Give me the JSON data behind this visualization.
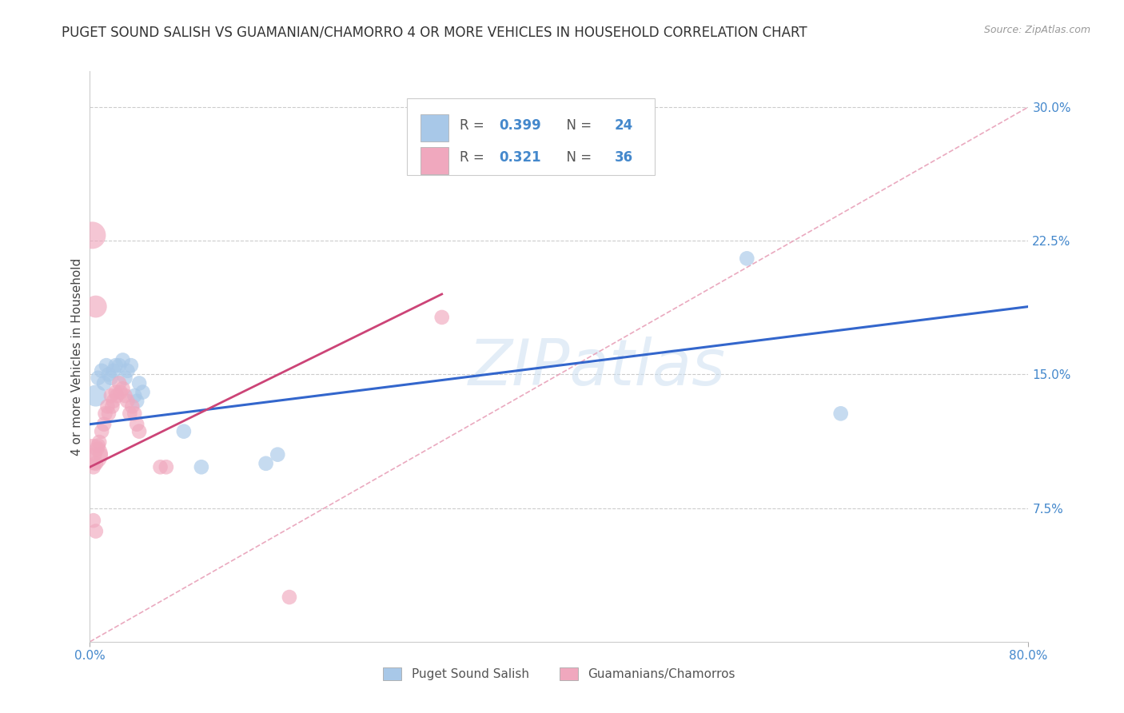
{
  "title": "PUGET SOUND SALISH VS GUAMANIAN/CHAMORRO 4 OR MORE VEHICLES IN HOUSEHOLD CORRELATION CHART",
  "source": "Source: ZipAtlas.com",
  "ylabel": "4 or more Vehicles in Household",
  "xlim": [
    0.0,
    0.8
  ],
  "ylim": [
    0.0,
    0.32
  ],
  "xticks": [
    0.0,
    0.8
  ],
  "xtick_labels": [
    "0.0%",
    "80.0%"
  ],
  "ytick_labels": [
    "7.5%",
    "15.0%",
    "22.5%",
    "30.0%"
  ],
  "yticks": [
    0.075,
    0.15,
    0.225,
    0.3
  ],
  "background_color": "#ffffff",
  "watermark": "ZIPatlas",
  "legend_labels": [
    "Puget Sound Salish",
    "Guamanians/Chamorros"
  ],
  "R_blue": 0.399,
  "N_blue": 24,
  "R_pink": 0.321,
  "N_pink": 36,
  "blue_color": "#a8c8e8",
  "pink_color": "#f0a8be",
  "blue_line_color": "#3366cc",
  "pink_line_color": "#cc4477",
  "diag_line_color": "#e8a0b8",
  "title_fontsize": 12,
  "axis_label_fontsize": 11,
  "tick_fontsize": 11,
  "legend_fontsize": 11,
  "blue_scatter": [
    [
      0.005,
      0.138
    ],
    [
      0.007,
      0.148
    ],
    [
      0.01,
      0.152
    ],
    [
      0.012,
      0.145
    ],
    [
      0.014,
      0.155
    ],
    [
      0.016,
      0.15
    ],
    [
      0.018,
      0.148
    ],
    [
      0.02,
      0.152
    ],
    [
      0.022,
      0.155
    ],
    [
      0.025,
      0.155
    ],
    [
      0.028,
      0.158
    ],
    [
      0.03,
      0.148
    ],
    [
      0.032,
      0.152
    ],
    [
      0.035,
      0.155
    ],
    [
      0.038,
      0.138
    ],
    [
      0.04,
      0.135
    ],
    [
      0.042,
      0.145
    ],
    [
      0.045,
      0.14
    ],
    [
      0.08,
      0.118
    ],
    [
      0.095,
      0.098
    ],
    [
      0.15,
      0.1
    ],
    [
      0.16,
      0.105
    ],
    [
      0.56,
      0.215
    ],
    [
      0.64,
      0.128
    ]
  ],
  "pink_scatter": [
    [
      0.002,
      0.105
    ],
    [
      0.003,
      0.098
    ],
    [
      0.004,
      0.105
    ],
    [
      0.005,
      0.1
    ],
    [
      0.006,
      0.108
    ],
    [
      0.007,
      0.11
    ],
    [
      0.008,
      0.112
    ],
    [
      0.009,
      0.105
    ],
    [
      0.01,
      0.118
    ],
    [
      0.012,
      0.122
    ],
    [
      0.013,
      0.128
    ],
    [
      0.015,
      0.132
    ],
    [
      0.016,
      0.128
    ],
    [
      0.018,
      0.138
    ],
    [
      0.019,
      0.132
    ],
    [
      0.02,
      0.135
    ],
    [
      0.022,
      0.14
    ],
    [
      0.023,
      0.138
    ],
    [
      0.025,
      0.145
    ],
    [
      0.026,
      0.14
    ],
    [
      0.028,
      0.142
    ],
    [
      0.03,
      0.138
    ],
    [
      0.032,
      0.135
    ],
    [
      0.034,
      0.128
    ],
    [
      0.036,
      0.132
    ],
    [
      0.038,
      0.128
    ],
    [
      0.04,
      0.122
    ],
    [
      0.042,
      0.118
    ],
    [
      0.06,
      0.098
    ],
    [
      0.065,
      0.098
    ],
    [
      0.003,
      0.068
    ],
    [
      0.005,
      0.062
    ],
    [
      0.002,
      0.228
    ],
    [
      0.005,
      0.188
    ],
    [
      0.17,
      0.025
    ],
    [
      0.3,
      0.182
    ]
  ],
  "blue_line": [
    [
      0.0,
      0.122
    ],
    [
      0.8,
      0.188
    ]
  ],
  "pink_line": [
    [
      0.0,
      0.098
    ],
    [
      0.3,
      0.195
    ]
  ],
  "diag_line": [
    [
      0.0,
      0.0
    ],
    [
      0.8,
      0.3
    ]
  ]
}
